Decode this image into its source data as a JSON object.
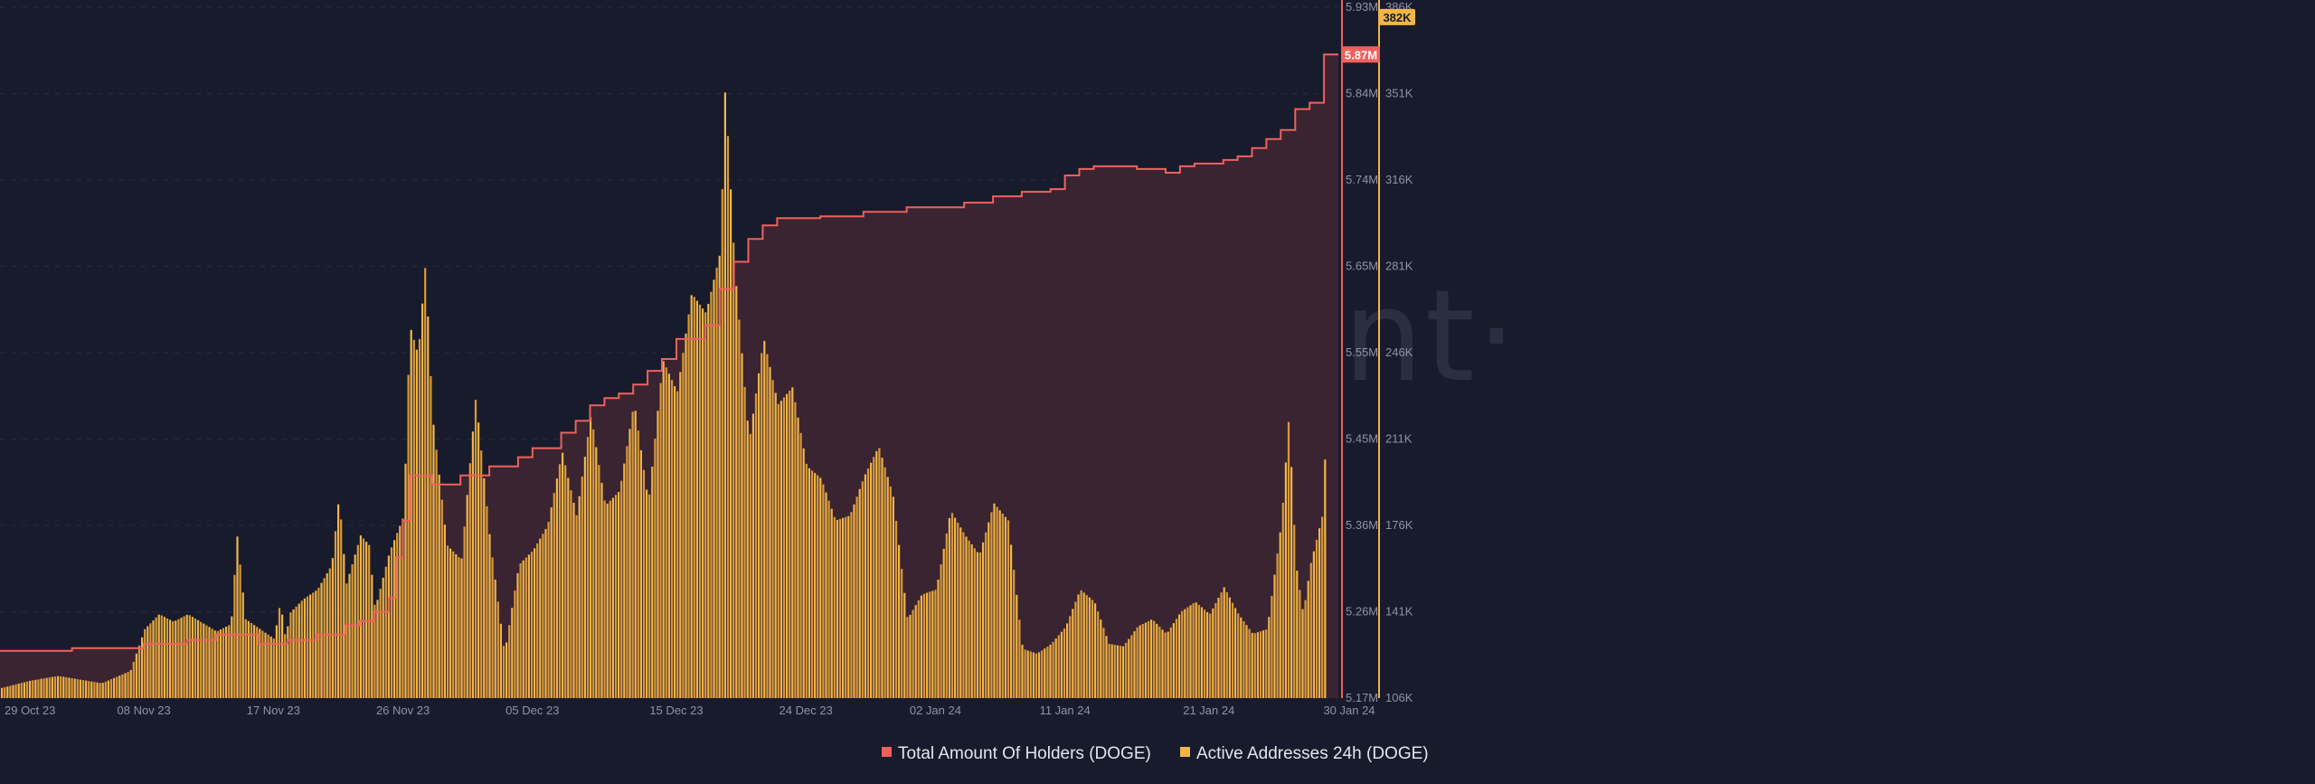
{
  "watermark": "·santiment·",
  "colors": {
    "background": "#181b2b",
    "holders_line": "#f0615d",
    "holders_fill": "#3a2431",
    "active_bars": "#f1b649",
    "active_bars_dark": "#d99a36",
    "grid": "#262a3c",
    "holders_badge_text": "#ffffff",
    "active_badge_text": "#181b2b"
  },
  "chart_data": {
    "type": "bar",
    "x_type": "date",
    "x_range": [
      "2023-10-29",
      "2024-01-30"
    ],
    "x_ticks": [
      {
        "date": "2023-10-29",
        "label": "29 Oct 23"
      },
      {
        "date": "2023-11-08",
        "label": "08 Nov 23"
      },
      {
        "date": "2023-11-17",
        "label": "17 Nov 23"
      },
      {
        "date": "2023-11-26",
        "label": "26 Nov 23"
      },
      {
        "date": "2023-12-05",
        "label": "05 Dec 23"
      },
      {
        "date": "2023-12-15",
        "label": "15 Dec 23"
      },
      {
        "date": "2023-12-24",
        "label": "24 Dec 23"
      },
      {
        "date": "2024-01-02",
        "label": "02 Jan 24"
      },
      {
        "date": "2024-01-11",
        "label": "11 Jan 24"
      },
      {
        "date": "2024-01-21",
        "label": "21 Jan 24"
      },
      {
        "date": "2024-01-30",
        "label": "30 Jan 24"
      }
    ],
    "grid": true,
    "legend_position": "bottom-center",
    "y_axes": [
      {
        "id": "holders",
        "side": "right-inner",
        "range": [
          5170000,
          5930000
        ],
        "tick_labels": [
          "5.17M",
          "5.26M",
          "5.36M",
          "5.45M",
          "5.55M",
          "5.65M",
          "5.74M",
          "5.84M",
          "5.93M"
        ],
        "current_label": "5.87M"
      },
      {
        "id": "active",
        "side": "right-outer",
        "range": [
          106000,
          386000
        ],
        "tick_labels": [
          "106K",
          "141K",
          "176K",
          "211K",
          "246K",
          "281K",
          "316K",
          "351K",
          "386K"
        ],
        "current_label": "382K"
      }
    ],
    "series": [
      {
        "name": "Total Amount Of Holders (DOGE)",
        "type": "step-area",
        "axis": "holders",
        "points": [
          [
            "2023-10-29",
            5222000
          ],
          [
            "2023-11-03",
            5225000
          ],
          [
            "2023-11-08",
            5230000
          ],
          [
            "2023-11-11",
            5234000
          ],
          [
            "2023-11-13",
            5240000
          ],
          [
            "2023-11-16",
            5230000
          ],
          [
            "2023-11-18",
            5234000
          ],
          [
            "2023-11-20",
            5240000
          ],
          [
            "2023-11-22",
            5250000
          ],
          [
            "2023-11-23",
            5255000
          ],
          [
            "2023-11-24",
            5265000
          ],
          [
            "2023-11-25",
            5280000
          ],
          [
            "2023-11-25T12",
            5325000
          ],
          [
            "2023-11-26",
            5365000
          ],
          [
            "2023-11-26T12",
            5415000
          ],
          [
            "2023-11-28",
            5405000
          ],
          [
            "2023-11-30",
            5415000
          ],
          [
            "2023-12-02",
            5425000
          ],
          [
            "2023-12-04",
            5435000
          ],
          [
            "2023-12-05",
            5445000
          ],
          [
            "2023-12-07",
            5462000
          ],
          [
            "2023-12-08",
            5475000
          ],
          [
            "2023-12-09",
            5492000
          ],
          [
            "2023-12-10",
            5500000
          ],
          [
            "2023-12-11",
            5505000
          ],
          [
            "2023-12-12",
            5515000
          ],
          [
            "2023-12-13",
            5530000
          ],
          [
            "2023-12-14",
            5543000
          ],
          [
            "2023-12-15",
            5565000
          ],
          [
            "2023-12-17",
            5580000
          ],
          [
            "2023-12-18",
            5620000
          ],
          [
            "2023-12-19",
            5650000
          ],
          [
            "2023-12-20",
            5675000
          ],
          [
            "2023-12-21",
            5690000
          ],
          [
            "2023-12-22",
            5698000
          ],
          [
            "2023-12-25",
            5700000
          ],
          [
            "2023-12-28",
            5705000
          ],
          [
            "2023-12-31",
            5710000
          ],
          [
            "2024-01-02",
            5710000
          ],
          [
            "2024-01-04",
            5715000
          ],
          [
            "2024-01-06",
            5722000
          ],
          [
            "2024-01-08",
            5727000
          ],
          [
            "2024-01-10",
            5730000
          ],
          [
            "2024-01-11",
            5745000
          ],
          [
            "2024-01-12",
            5752000
          ],
          [
            "2024-01-13",
            5755000
          ],
          [
            "2024-01-16",
            5752000
          ],
          [
            "2024-01-18",
            5748000
          ],
          [
            "2024-01-19",
            5755000
          ],
          [
            "2024-01-20",
            5758000
          ],
          [
            "2024-01-22",
            5762000
          ],
          [
            "2024-01-23",
            5766000
          ],
          [
            "2024-01-24",
            5775000
          ],
          [
            "2024-01-25",
            5785000
          ],
          [
            "2024-01-26",
            5795000
          ],
          [
            "2024-01-27",
            5818000
          ],
          [
            "2024-01-28",
            5825000
          ],
          [
            "2024-01-29",
            5878000
          ],
          [
            "2024-01-30",
            5878000
          ]
        ]
      },
      {
        "name": "Active Addresses 24h (DOGE)",
        "type": "bar",
        "axis": "active",
        "points": [
          [
            "2023-10-29",
            110000
          ],
          [
            "2023-10-31",
            113000
          ],
          [
            "2023-11-02",
            115000
          ],
          [
            "2023-11-05",
            112000
          ],
          [
            "2023-11-07",
            117000
          ],
          [
            "2023-11-08",
            134000
          ],
          [
            "2023-11-09",
            140000
          ],
          [
            "2023-11-10",
            137000
          ],
          [
            "2023-11-11",
            140000
          ],
          [
            "2023-11-13",
            133000
          ],
          [
            "2023-11-14",
            136000
          ],
          [
            "2023-11-14T10",
            172000
          ],
          [
            "2023-11-15",
            138000
          ],
          [
            "2023-11-16",
            134000
          ],
          [
            "2023-11-17",
            130000
          ],
          [
            "2023-11-17T10",
            145000
          ],
          [
            "2023-11-17T20",
            128000
          ],
          [
            "2023-11-18",
            140000
          ],
          [
            "2023-11-19",
            146000
          ],
          [
            "2023-11-20",
            150000
          ],
          [
            "2023-11-21",
            160000
          ],
          [
            "2023-11-21T12",
            188000
          ],
          [
            "2023-11-22",
            152000
          ],
          [
            "2023-11-23",
            172000
          ],
          [
            "2023-11-23T14",
            168000
          ],
          [
            "2023-11-24",
            142000
          ],
          [
            "2023-11-25",
            165000
          ],
          [
            "2023-11-26",
            180000
          ],
          [
            "2023-11-26T10",
            257000
          ],
          [
            "2023-11-27",
            245000
          ],
          [
            "2023-11-27T12",
            282000
          ],
          [
            "2023-11-28",
            220000
          ],
          [
            "2023-11-29",
            168000
          ],
          [
            "2023-11-30",
            162000
          ],
          [
            "2023-12-01",
            228000
          ],
          [
            "2023-12-02",
            170000
          ],
          [
            "2023-12-03",
            124000
          ],
          [
            "2023-12-04",
            160000
          ],
          [
            "2023-12-05",
            166000
          ],
          [
            "2023-12-06",
            176000
          ],
          [
            "2023-12-07",
            206000
          ],
          [
            "2023-12-08",
            180000
          ],
          [
            "2023-12-09",
            221000
          ],
          [
            "2023-12-10",
            184000
          ],
          [
            "2023-12-11",
            190000
          ],
          [
            "2023-12-12",
            226000
          ],
          [
            "2023-12-13",
            185000
          ],
          [
            "2023-12-14",
            243000
          ],
          [
            "2023-12-15",
            230000
          ],
          [
            "2023-12-16",
            270000
          ],
          [
            "2023-12-17",
            262000
          ],
          [
            "2023-12-18",
            287000
          ],
          [
            "2023-12-18T08",
            354000
          ],
          [
            "2023-12-19",
            280000
          ],
          [
            "2023-12-20",
            210000
          ],
          [
            "2023-12-21",
            252000
          ],
          [
            "2023-12-22",
            225000
          ],
          [
            "2023-12-23",
            232000
          ],
          [
            "2023-12-24",
            200000
          ],
          [
            "2023-12-25",
            195000
          ],
          [
            "2023-12-26",
            178000
          ],
          [
            "2023-12-27",
            180000
          ],
          [
            "2023-12-28",
            196000
          ],
          [
            "2023-12-29",
            208000
          ],
          [
            "2023-12-30",
            188000
          ],
          [
            "2023-12-31",
            138000
          ],
          [
            "2024-01-01",
            148000
          ],
          [
            "2024-01-02",
            150000
          ],
          [
            "2024-01-03",
            182000
          ],
          [
            "2024-01-04",
            172000
          ],
          [
            "2024-01-05",
            164000
          ],
          [
            "2024-01-06",
            185000
          ],
          [
            "2024-01-07",
            178000
          ],
          [
            "2024-01-08",
            126000
          ],
          [
            "2024-01-09",
            124000
          ],
          [
            "2024-01-10",
            128000
          ],
          [
            "2024-01-11",
            135000
          ],
          [
            "2024-01-12",
            150000
          ],
          [
            "2024-01-13",
            145000
          ],
          [
            "2024-01-14",
            128000
          ],
          [
            "2024-01-15",
            127000
          ],
          [
            "2024-01-16",
            135000
          ],
          [
            "2024-01-17",
            138000
          ],
          [
            "2024-01-18",
            132000
          ],
          [
            "2024-01-19",
            141000
          ],
          [
            "2024-01-20",
            145000
          ],
          [
            "2024-01-21",
            140000
          ],
          [
            "2024-01-22",
            151000
          ],
          [
            "2024-01-23",
            140000
          ],
          [
            "2024-01-24",
            132000
          ],
          [
            "2024-01-25",
            134000
          ],
          [
            "2024-01-26",
            178000
          ],
          [
            "2024-01-26T12",
            220000
          ],
          [
            "2024-01-27",
            160000
          ],
          [
            "2024-01-27T12",
            140000
          ],
          [
            "2024-01-28",
            160000
          ],
          [
            "2024-01-28T20",
            180000
          ],
          [
            "2024-01-29",
            200000
          ],
          [
            "2024-01-29T08",
            325000
          ],
          [
            "2024-01-29T16",
            370000
          ],
          [
            "2024-01-30",
            382000
          ]
        ]
      }
    ]
  }
}
